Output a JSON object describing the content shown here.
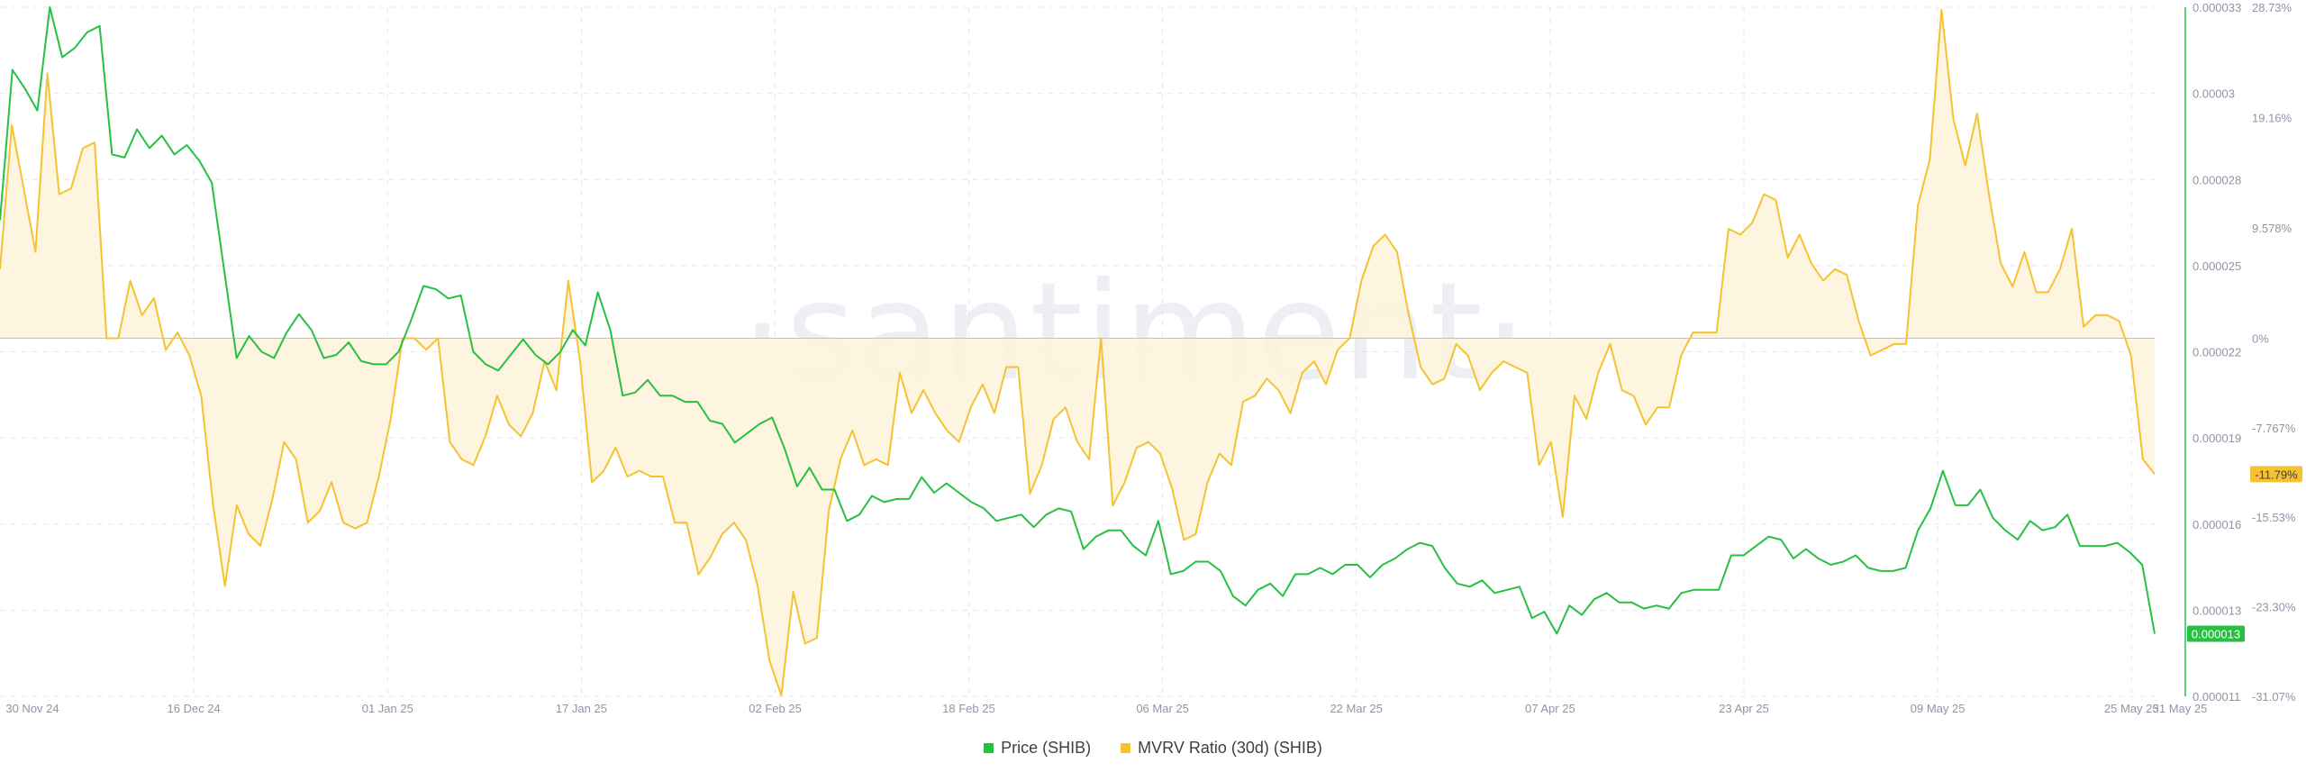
{
  "colors": {
    "price": "#27c043",
    "mvrv": "#f5c232",
    "mvrv_fill": "#fdf3d9",
    "grid": "#e4e7ee",
    "axis": "#27c043"
  },
  "watermark": "·santiment·",
  "legend": [
    {
      "label": "Price (SHIB)",
      "color": "#27c043"
    },
    {
      "label": "MVRV Ratio (30d) (SHIB)",
      "color": "#f5c232"
    }
  ],
  "chart_data": {
    "type": "line",
    "x_tick_labels": [
      "30 Nov 24",
      "16 Dec 24",
      "01 Jan 25",
      "17 Jan 25",
      "02 Feb 25",
      "18 Feb 25",
      "06 Mar 25",
      "22 Mar 25",
      "07 Apr 25",
      "23 Apr 25",
      "09 May 25",
      "25 May 25",
      "31 May 25"
    ],
    "x_range": [
      "30 Nov 24",
      "31 May 25"
    ],
    "price_axis": {
      "ticks": [
        "0.000033",
        "0.00003",
        "0.000028",
        "0.000025",
        "0.000022",
        "0.000019",
        "0.000016",
        "0.000013",
        "0.000011"
      ],
      "ylim": [
        1.1e-05,
        3.3e-05
      ]
    },
    "mvrv_axis": {
      "ticks": [
        "28.73%",
        "19.16%",
        "9.578%",
        "0%",
        "-7.767%",
        "-15.53%",
        "-23.30%",
        "-31.07%"
      ],
      "ylim": [
        -31.07,
        28.73
      ]
    },
    "last_values": {
      "price": "0.000013",
      "mvrv": "-11.79%"
    },
    "series": [
      {
        "name": "Price (SHIB)",
        "axis": "price",
        "values": [
          2.62e-05,
          3.1e-05,
          3.04e-05,
          2.97e-05,
          3.3e-05,
          3.14e-05,
          3.17e-05,
          3.22e-05,
          3.24e-05,
          2.83e-05,
          2.82e-05,
          2.91e-05,
          2.85e-05,
          2.89e-05,
          2.83e-05,
          2.86e-05,
          2.81e-05,
          2.74e-05,
          2.46e-05,
          2.18e-05,
          2.25e-05,
          2.2e-05,
          2.18e-05,
          2.26e-05,
          2.32e-05,
          2.27e-05,
          2.18e-05,
          2.19e-05,
          2.23e-05,
          2.17e-05,
          2.16e-05,
          2.16e-05,
          2.2e-05,
          2.3e-05,
          2.41e-05,
          2.4e-05,
          2.37e-05,
          2.38e-05,
          2.2e-05,
          2.16e-05,
          2.14e-05,
          2.19e-05,
          2.24e-05,
          2.19e-05,
          2.16e-05,
          2.2e-05,
          2.27e-05,
          2.22e-05,
          2.39e-05,
          2.27e-05,
          2.06e-05,
          2.07e-05,
          2.11e-05,
          2.06e-05,
          2.06e-05,
          2.04e-05,
          2.04e-05,
          1.98e-05,
          1.97e-05,
          1.91e-05,
          1.94e-05,
          1.97e-05,
          1.99e-05,
          1.89e-05,
          1.77e-05,
          1.83e-05,
          1.76e-05,
          1.76e-05,
          1.66e-05,
          1.68e-05,
          1.74e-05,
          1.72e-05,
          1.73e-05,
          1.73e-05,
          1.8e-05,
          1.75e-05,
          1.78e-05,
          1.75e-05,
          1.72e-05,
          1.7e-05,
          1.66e-05,
          1.67e-05,
          1.68e-05,
          1.64e-05,
          1.68e-05,
          1.7e-05,
          1.69e-05,
          1.57e-05,
          1.61e-05,
          1.63e-05,
          1.63e-05,
          1.58e-05,
          1.55e-05,
          1.66e-05,
          1.49e-05,
          1.5e-05,
          1.53e-05,
          1.53e-05,
          1.5e-05,
          1.42e-05,
          1.39e-05,
          1.44e-05,
          1.46e-05,
          1.42e-05,
          1.49e-05,
          1.49e-05,
          1.51e-05,
          1.49e-05,
          1.52e-05,
          1.52e-05,
          1.48e-05,
          1.52e-05,
          1.54e-05,
          1.57e-05,
          1.59e-05,
          1.58e-05,
          1.51e-05,
          1.46e-05,
          1.45e-05,
          1.47e-05,
          1.43e-05,
          1.44e-05,
          1.45e-05,
          1.35e-05,
          1.37e-05,
          1.3e-05,
          1.39e-05,
          1.36e-05,
          1.41e-05,
          1.43e-05,
          1.4e-05,
          1.4e-05,
          1.38e-05,
          1.39e-05,
          1.38e-05,
          1.43e-05,
          1.44e-05,
          1.44e-05,
          1.44e-05,
          1.55e-05,
          1.55e-05,
          1.58e-05,
          1.61e-05,
          1.6e-05,
          1.54e-05,
          1.57e-05,
          1.54e-05,
          1.52e-05,
          1.53e-05,
          1.55e-05,
          1.51e-05,
          1.5e-05,
          1.5e-05,
          1.51e-05,
          1.63e-05,
          1.7e-05,
          1.82e-05,
          1.71e-05,
          1.71e-05,
          1.76e-05,
          1.67e-05,
          1.63e-05,
          1.6e-05,
          1.66e-05,
          1.63e-05,
          1.64e-05,
          1.68e-05,
          1.58e-05,
          1.58e-05,
          1.58e-05,
          1.59e-05,
          1.56e-05,
          1.52e-05,
          1.3e-05
        ]
      },
      {
        "name": "MVRV Ratio (30d) (SHIB)",
        "axis": "mvrv",
        "values": [
          6.0,
          18.5,
          13.0,
          7.5,
          23.0,
          12.5,
          13.0,
          16.5,
          17.0,
          0.0,
          0.0,
          5.0,
          2.0,
          3.5,
          -1.0,
          0.5,
          -1.5,
          -5.0,
          -14.5,
          -21.5,
          -14.5,
          -17.0,
          -18.0,
          -14.0,
          -9.0,
          -10.5,
          -16.0,
          -15.0,
          -12.5,
          -16.0,
          -16.5,
          -16.0,
          -12.0,
          -7.0,
          0.0,
          0.0,
          -1.0,
          0.0,
          -9.0,
          -10.5,
          -11.0,
          -8.5,
          -5.0,
          -7.5,
          -8.5,
          -6.5,
          -2.0,
          -4.5,
          5.0,
          -2.0,
          -12.5,
          -11.5,
          -9.5,
          -12.0,
          -11.5,
          -12.0,
          -12.0,
          -16.0,
          -16.0,
          -20.5,
          -19.0,
          -17.0,
          -16.0,
          -17.5,
          -21.5,
          -28.0,
          -31.0,
          -22.0,
          -26.5,
          -26.0,
          -15.0,
          -10.5,
          -8.0,
          -11.0,
          -10.5,
          -11.0,
          -3.0,
          -6.5,
          -4.5,
          -6.5,
          -8.0,
          -9.0,
          -6.0,
          -4.0,
          -6.5,
          -2.5,
          -2.5,
          -13.5,
          -11.0,
          -7.0,
          -6.0,
          -9.0,
          -10.5,
          0.0,
          -14.5,
          -12.5,
          -9.5,
          -9.0,
          -10.0,
          -13.0,
          -17.5,
          -17.0,
          -12.5,
          -10.0,
          -11.0,
          -5.5,
          -5.0,
          -3.5,
          -4.5,
          -6.5,
          -3.0,
          -2.0,
          -4.0,
          -1.0,
          0.0,
          5.0,
          8.0,
          9.0,
          7.5,
          2.0,
          -2.5,
          -4.0,
          -3.5,
          -0.5,
          -1.5,
          -4.5,
          -3.0,
          -2.0,
          -2.5,
          -3.0,
          -11.0,
          -9.0,
          -15.5,
          -5.0,
          -7.0,
          -3.0,
          -0.5,
          -4.5,
          -5.0,
          -7.5,
          -6.0,
          -6.0,
          -1.5,
          0.5,
          0.5,
          0.5,
          9.5,
          9.0,
          10.0,
          12.5,
          12.0,
          7.0,
          9.0,
          6.5,
          5.0,
          6.0,
          5.5,
          1.5,
          -1.5,
          -1.0,
          -0.5,
          -0.5,
          11.5,
          15.5,
          28.5,
          19.0,
          15.0,
          19.5,
          12.5,
          6.5,
          4.5,
          7.5,
          4.0,
          4.0,
          6.0,
          9.5,
          1.0,
          2.0,
          2.0,
          1.5,
          -1.5,
          -10.5,
          -11.79
        ]
      }
    ],
    "grid": true,
    "legend_position": "bottom-center"
  }
}
